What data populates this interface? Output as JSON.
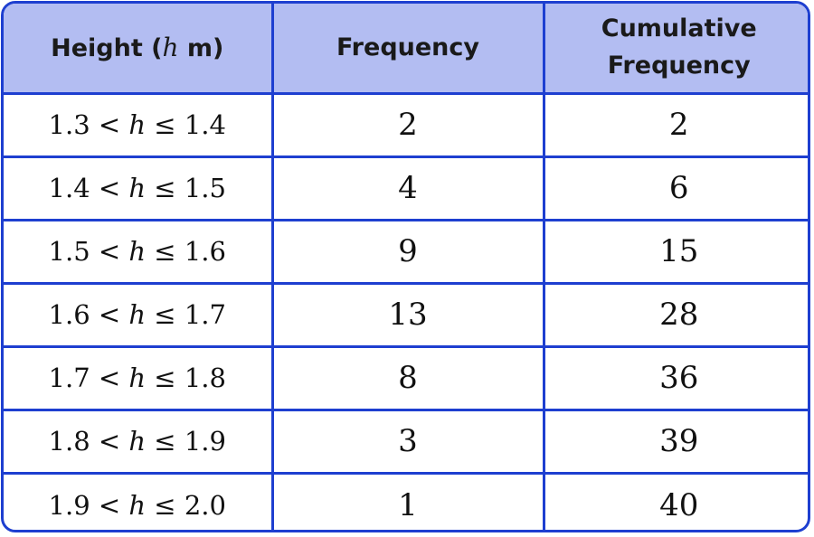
{
  "table": {
    "headers": {
      "height": {
        "prefix": "Height (",
        "variable": "h",
        "suffix": " m)"
      },
      "frequency": "Frequency",
      "cumulative_line1": "Cumulative",
      "cumulative_line2": "Frequency"
    },
    "interval_variable": "h",
    "rows": [
      {
        "lower": "1.3 < ",
        "upper": " ≤ 1.4",
        "frequency": "2",
        "cumulative": "2"
      },
      {
        "lower": "1.4 < ",
        "upper": " ≤ 1.5",
        "frequency": "4",
        "cumulative": "6"
      },
      {
        "lower": "1.5 < ",
        "upper": " ≤ 1.6",
        "frequency": "9",
        "cumulative": "15"
      },
      {
        "lower": "1.6 < ",
        "upper": " ≤ 1.7",
        "frequency": "13",
        "cumulative": "28"
      },
      {
        "lower": "1.7 < ",
        "upper": " ≤ 1.8",
        "frequency": "8",
        "cumulative": "36"
      },
      {
        "lower": "1.8 < ",
        "upper": " ≤ 1.9",
        "frequency": "3",
        "cumulative": "39"
      },
      {
        "lower": "1.9 < ",
        "upper": " ≤ 2.0",
        "frequency": "1",
        "cumulative": "40"
      }
    ]
  },
  "colors": {
    "border": "#1e3fd0",
    "header_background": "#b3bdf2",
    "text": "#111111"
  }
}
